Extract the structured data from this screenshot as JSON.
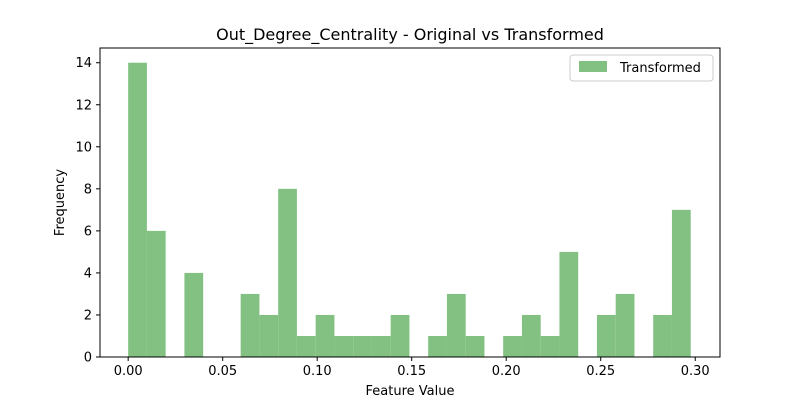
{
  "chart_data": {
    "type": "bar",
    "title": "Out_Degree_Centrality - Original vs Transformed",
    "xlabel": "Feature Value",
    "ylabel": "Frequency",
    "xlim": [
      -0.0149,
      0.3131
    ],
    "ylim": [
      0,
      14.7
    ],
    "xticks": [
      0.0,
      0.05,
      0.1,
      0.15,
      0.2,
      0.25,
      0.3
    ],
    "xtick_labels": [
      "0.00",
      "0.05",
      "0.10",
      "0.15",
      "0.20",
      "0.25",
      "0.30"
    ],
    "yticks": [
      0,
      2,
      4,
      6,
      8,
      10,
      12,
      14
    ],
    "ytick_labels": [
      "0",
      "2",
      "4",
      "6",
      "8",
      "10",
      "12",
      "14"
    ],
    "grid": false,
    "legend_position": "top-right",
    "series": [
      {
        "name": "Transformed",
        "color": "#82c182",
        "bin_start": 0.0,
        "bin_width": 0.00992,
        "counts": [
          14,
          6,
          0,
          4,
          0,
          0,
          3,
          2,
          8,
          1,
          2,
          1,
          1,
          1,
          2,
          0,
          1,
          3,
          1,
          0,
          1,
          2,
          1,
          5,
          0,
          2,
          3,
          0,
          2,
          7
        ]
      }
    ]
  }
}
